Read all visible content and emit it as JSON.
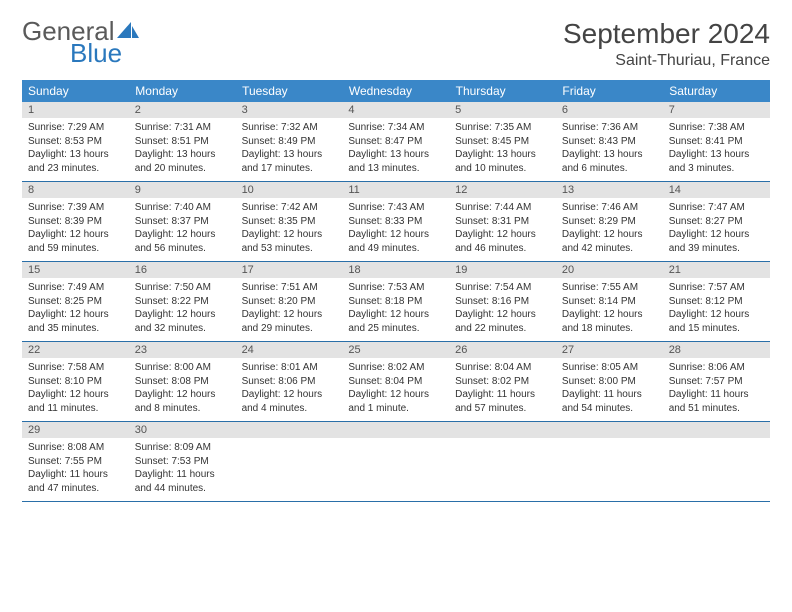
{
  "logo": {
    "word1": "General",
    "word2": "Blue"
  },
  "title": "September 2024",
  "location": "Saint-Thuriau, France",
  "colors": {
    "header_bg": "#3a87c8",
    "header_text": "#ffffff",
    "daynum_bg": "#e3e3e3",
    "row_divider": "#2a6fa8",
    "logo_gray": "#5a5a5a",
    "logo_blue": "#2a78bd"
  },
  "weekdays": [
    "Sunday",
    "Monday",
    "Tuesday",
    "Wednesday",
    "Thursday",
    "Friday",
    "Saturday"
  ],
  "days": [
    {
      "n": "1",
      "sunrise": "7:29 AM",
      "sunset": "8:53 PM",
      "daylight": "13 hours and 23 minutes."
    },
    {
      "n": "2",
      "sunrise": "7:31 AM",
      "sunset": "8:51 PM",
      "daylight": "13 hours and 20 minutes."
    },
    {
      "n": "3",
      "sunrise": "7:32 AM",
      "sunset": "8:49 PM",
      "daylight": "13 hours and 17 minutes."
    },
    {
      "n": "4",
      "sunrise": "7:34 AM",
      "sunset": "8:47 PM",
      "daylight": "13 hours and 13 minutes."
    },
    {
      "n": "5",
      "sunrise": "7:35 AM",
      "sunset": "8:45 PM",
      "daylight": "13 hours and 10 minutes."
    },
    {
      "n": "6",
      "sunrise": "7:36 AM",
      "sunset": "8:43 PM",
      "daylight": "13 hours and 6 minutes."
    },
    {
      "n": "7",
      "sunrise": "7:38 AM",
      "sunset": "8:41 PM",
      "daylight": "13 hours and 3 minutes."
    },
    {
      "n": "8",
      "sunrise": "7:39 AM",
      "sunset": "8:39 PM",
      "daylight": "12 hours and 59 minutes."
    },
    {
      "n": "9",
      "sunrise": "7:40 AM",
      "sunset": "8:37 PM",
      "daylight": "12 hours and 56 minutes."
    },
    {
      "n": "10",
      "sunrise": "7:42 AM",
      "sunset": "8:35 PM",
      "daylight": "12 hours and 53 minutes."
    },
    {
      "n": "11",
      "sunrise": "7:43 AM",
      "sunset": "8:33 PM",
      "daylight": "12 hours and 49 minutes."
    },
    {
      "n": "12",
      "sunrise": "7:44 AM",
      "sunset": "8:31 PM",
      "daylight": "12 hours and 46 minutes."
    },
    {
      "n": "13",
      "sunrise": "7:46 AM",
      "sunset": "8:29 PM",
      "daylight": "12 hours and 42 minutes."
    },
    {
      "n": "14",
      "sunrise": "7:47 AM",
      "sunset": "8:27 PM",
      "daylight": "12 hours and 39 minutes."
    },
    {
      "n": "15",
      "sunrise": "7:49 AM",
      "sunset": "8:25 PM",
      "daylight": "12 hours and 35 minutes."
    },
    {
      "n": "16",
      "sunrise": "7:50 AM",
      "sunset": "8:22 PM",
      "daylight": "12 hours and 32 minutes."
    },
    {
      "n": "17",
      "sunrise": "7:51 AM",
      "sunset": "8:20 PM",
      "daylight": "12 hours and 29 minutes."
    },
    {
      "n": "18",
      "sunrise": "7:53 AM",
      "sunset": "8:18 PM",
      "daylight": "12 hours and 25 minutes."
    },
    {
      "n": "19",
      "sunrise": "7:54 AM",
      "sunset": "8:16 PM",
      "daylight": "12 hours and 22 minutes."
    },
    {
      "n": "20",
      "sunrise": "7:55 AM",
      "sunset": "8:14 PM",
      "daylight": "12 hours and 18 minutes."
    },
    {
      "n": "21",
      "sunrise": "7:57 AM",
      "sunset": "8:12 PM",
      "daylight": "12 hours and 15 minutes."
    },
    {
      "n": "22",
      "sunrise": "7:58 AM",
      "sunset": "8:10 PM",
      "daylight": "12 hours and 11 minutes."
    },
    {
      "n": "23",
      "sunrise": "8:00 AM",
      "sunset": "8:08 PM",
      "daylight": "12 hours and 8 minutes."
    },
    {
      "n": "24",
      "sunrise": "8:01 AM",
      "sunset": "8:06 PM",
      "daylight": "12 hours and 4 minutes."
    },
    {
      "n": "25",
      "sunrise": "8:02 AM",
      "sunset": "8:04 PM",
      "daylight": "12 hours and 1 minute."
    },
    {
      "n": "26",
      "sunrise": "8:04 AM",
      "sunset": "8:02 PM",
      "daylight": "11 hours and 57 minutes."
    },
    {
      "n": "27",
      "sunrise": "8:05 AM",
      "sunset": "8:00 PM",
      "daylight": "11 hours and 54 minutes."
    },
    {
      "n": "28",
      "sunrise": "8:06 AM",
      "sunset": "7:57 PM",
      "daylight": "11 hours and 51 minutes."
    },
    {
      "n": "29",
      "sunrise": "8:08 AM",
      "sunset": "7:55 PM",
      "daylight": "11 hours and 47 minutes."
    },
    {
      "n": "30",
      "sunrise": "8:09 AM",
      "sunset": "7:53 PM",
      "daylight": "11 hours and 44 minutes."
    }
  ],
  "labels": {
    "sunrise": "Sunrise:",
    "sunset": "Sunset:",
    "daylight": "Daylight:"
  }
}
